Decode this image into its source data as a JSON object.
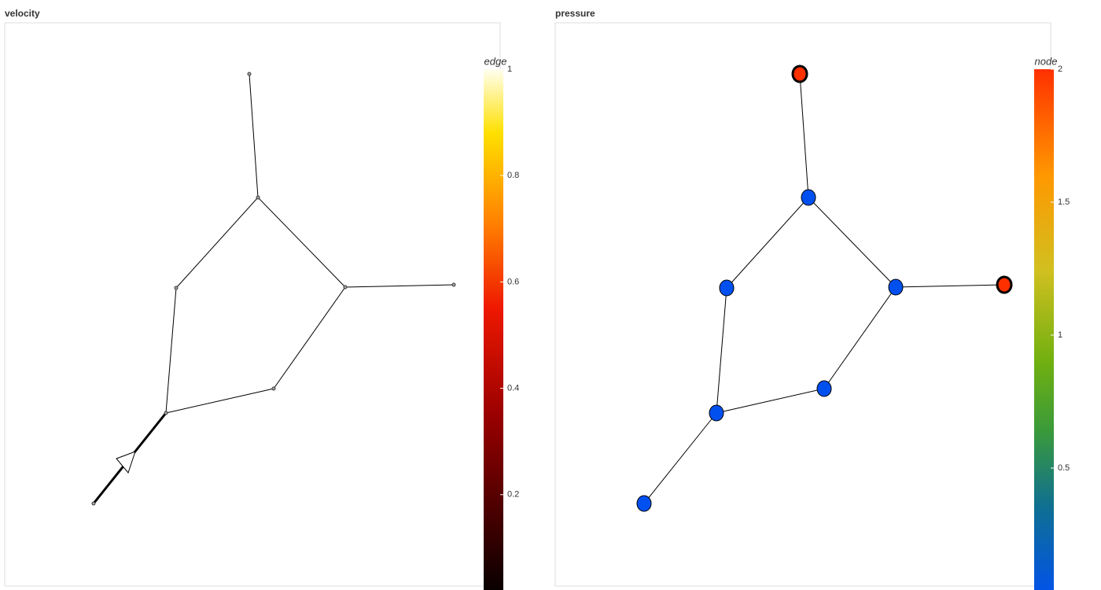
{
  "panels": [
    {
      "title": "velocity",
      "colorbar": {
        "label": "edge",
        "range": [
          0,
          1
        ],
        "ticks": [
          0.2,
          0.4,
          0.6,
          0.8,
          1
        ]
      },
      "edge_values": [
        0,
        0,
        0,
        0,
        0,
        0,
        0,
        0
      ]
    },
    {
      "title": "pressure",
      "colorbar": {
        "label": "node",
        "range": [
          0,
          2
        ],
        "ticks": [
          0.5,
          1,
          1.5,
          2
        ]
      },
      "node_values": [
        2,
        0,
        0,
        0,
        2,
        0,
        0,
        0
      ]
    }
  ]
}
